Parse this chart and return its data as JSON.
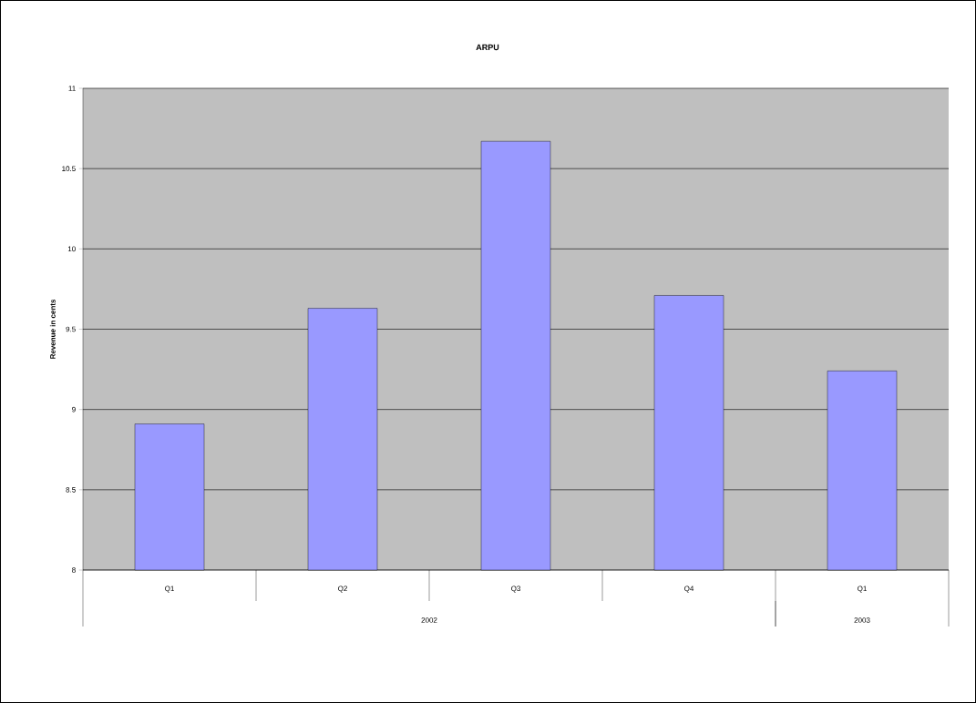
{
  "chart_data": {
    "type": "bar",
    "title": "ARPU",
    "ylabel": "Revenue in cents",
    "categories": [
      "Q1",
      "Q2",
      "Q3",
      "Q4",
      "Q1"
    ],
    "values": [
      8.91,
      9.63,
      10.67,
      9.71,
      9.24
    ],
    "color": "#9999ff",
    "ylim": [
      8,
      11
    ],
    "yticks": [
      8,
      8.5,
      9,
      9.5,
      10,
      10.5,
      11
    ],
    "grid": "y",
    "annotations": [
      "2002",
      "2003"
    ]
  }
}
